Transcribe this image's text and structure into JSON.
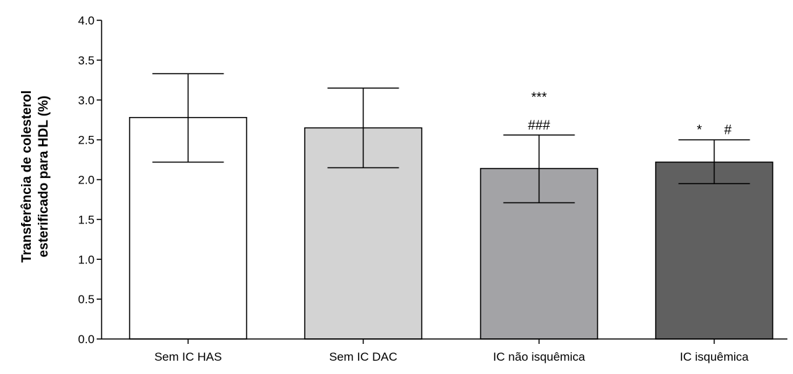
{
  "chart_data": {
    "type": "bar",
    "categories": [
      "Sem IC HAS",
      "Sem IC DAC",
      "IC não isquêmica",
      "IC isquêmica"
    ],
    "values": [
      2.78,
      2.65,
      2.14,
      2.22
    ],
    "error_upper": [
      3.33,
      3.15,
      2.56,
      2.5
    ],
    "error_lower": [
      2.22,
      2.15,
      1.71,
      1.95
    ],
    "bar_colors": [
      "#ffffff",
      "#d3d3d3",
      "#a3a3a6",
      "#606060"
    ],
    "annotations": [
      {
        "category_index": 2,
        "lines": [
          "***",
          "###"
        ]
      },
      {
        "category_index": 3,
        "lines": [
          "*      #"
        ]
      }
    ],
    "title": "",
    "xlabel": "",
    "ylabel_lines": [
      "Transferência de colesterol",
      "esterificado para HDL (%)"
    ],
    "ylim": [
      0,
      4.0
    ],
    "yticks": [
      "0.0",
      "0.5",
      "1.0",
      "1.5",
      "2.0",
      "2.5",
      "3.0",
      "3.5",
      "4.0"
    ],
    "grid": false,
    "legend": "none"
  }
}
